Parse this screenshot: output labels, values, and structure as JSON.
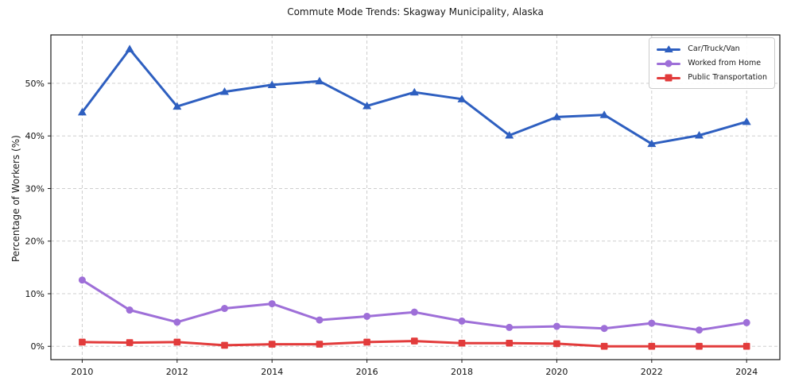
{
  "figure_title": "Commute Mode Trends: Skagway Municipality, Alaska",
  "chart_data": {
    "type": "line",
    "title": "Commute Mode Trends: Skagway Municipality, Alaska",
    "xlabel": "",
    "ylabel": "Percentage of Workers (%)",
    "x": [
      2010,
      2011,
      2012,
      2013,
      2014,
      2015,
      2016,
      2017,
      2018,
      2019,
      2020,
      2021,
      2022,
      2023,
      2024
    ],
    "series": [
      {
        "name": "Car/Truck/Van",
        "marker": "triangle",
        "color": "#2e5fc0",
        "values": [
          44.5,
          56.5,
          45.6,
          48.4,
          49.7,
          50.4,
          45.7,
          48.3,
          47.0,
          40.1,
          43.6,
          44.0,
          38.5,
          40.1,
          42.7
        ]
      },
      {
        "name": "Worked from Home",
        "marker": "circle",
        "color": "#9e6fd8",
        "values": [
          12.6,
          6.9,
          4.6,
          7.2,
          8.1,
          5.0,
          5.7,
          6.5,
          4.8,
          3.6,
          3.8,
          3.4,
          4.4,
          3.1,
          4.5
        ]
      },
      {
        "name": "Public Transportation",
        "marker": "square",
        "color": "#e23b3b",
        "values": [
          0.8,
          0.7,
          0.8,
          0.2,
          0.4,
          0.4,
          0.8,
          1.0,
          0.6,
          0.6,
          0.5,
          0.0,
          0.0,
          0.0,
          0.0
        ]
      }
    ],
    "xticks": [
      2010,
      2012,
      2014,
      2016,
      2018,
      2020,
      2022,
      2024
    ],
    "yticks": [
      0,
      10,
      20,
      30,
      40,
      50
    ],
    "ytick_suffix": "%",
    "xlim": [
      2009.34,
      2024.7
    ],
    "ylim": [
      -2.53,
      59.2
    ],
    "grid": true,
    "grid_style": "dashed",
    "grid_color": "#c8c8c8",
    "axis_color": "#1a1a1a",
    "tick_label_color": "#111111",
    "legend_position": "upper right",
    "line_width": 3
  }
}
